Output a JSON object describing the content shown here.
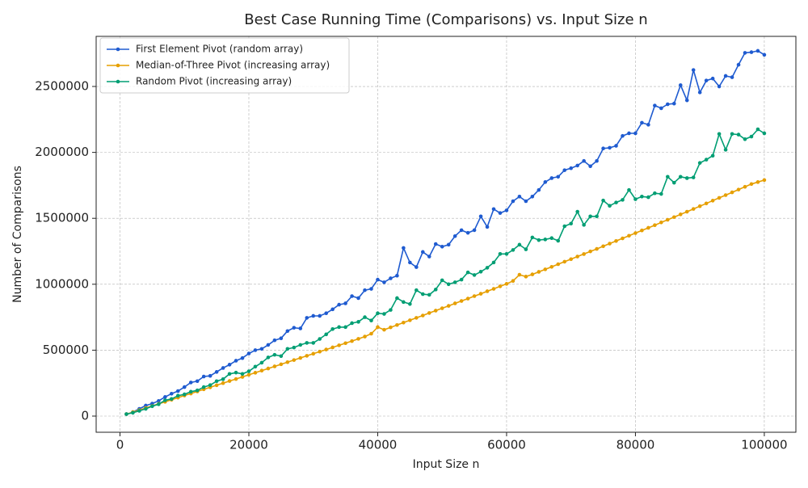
{
  "chart_data": {
    "type": "line",
    "title": "Best Case Running Time (Comparisons) vs. Input Size n",
    "x_label": "Input Size n",
    "y_label": "Number of Comparisons",
    "x": [
      1000,
      2000,
      3000,
      4000,
      5000,
      6000,
      7000,
      8000,
      9000,
      10000,
      11000,
      12000,
      13000,
      14000,
      15000,
      16000,
      17000,
      18000,
      19000,
      20000,
      21000,
      22000,
      23000,
      24000,
      25000,
      26000,
      27000,
      28000,
      29000,
      30000,
      31000,
      32000,
      33000,
      34000,
      35000,
      36000,
      37000,
      38000,
      39000,
      40000,
      41000,
      42000,
      43000,
      44000,
      45000,
      46000,
      47000,
      48000,
      49000,
      50000,
      51000,
      52000,
      53000,
      54000,
      55000,
      56000,
      57000,
      58000,
      59000,
      60000,
      61000,
      62000,
      63000,
      64000,
      65000,
      66000,
      67000,
      68000,
      69000,
      70000,
      71000,
      72000,
      73000,
      74000,
      75000,
      76000,
      77000,
      78000,
      79000,
      80000,
      81000,
      82000,
      83000,
      84000,
      85000,
      86000,
      87000,
      88000,
      89000,
      90000,
      91000,
      92000,
      93000,
      94000,
      95000,
      96000,
      97000,
      98000,
      99000,
      100000
    ],
    "series": [
      {
        "name": "First Element Pivot (random array)",
        "color": "#1f5bd0",
        "values": [
          15000,
          30000,
          55000,
          80000,
          95000,
          115000,
          145000,
          170000,
          190000,
          220000,
          255000,
          265000,
          300000,
          305000,
          335000,
          365000,
          390000,
          420000,
          440000,
          475000,
          500000,
          510000,
          540000,
          575000,
          590000,
          645000,
          670000,
          665000,
          745000,
          760000,
          760000,
          780000,
          810000,
          845000,
          855000,
          910000,
          895000,
          955000,
          965000,
          1035000,
          1015000,
          1045000,
          1065000,
          1275000,
          1165000,
          1130000,
          1245000,
          1210000,
          1305000,
          1285000,
          1300000,
          1365000,
          1410000,
          1390000,
          1410000,
          1515000,
          1435000,
          1570000,
          1540000,
          1560000,
          1630000,
          1665000,
          1630000,
          1665000,
          1715000,
          1775000,
          1805000,
          1815000,
          1865000,
          1880000,
          1900000,
          1935000,
          1895000,
          1935000,
          2030000,
          2035000,
          2050000,
          2125000,
          2145000,
          2145000,
          2225000,
          2210000,
          2355000,
          2335000,
          2365000,
          2370000,
          2510000,
          2395000,
          2625000,
          2455000,
          2545000,
          2560000,
          2500000,
          2580000,
          2570000,
          2665000,
          2755000,
          2760000,
          2770000,
          2740000
        ]
      },
      {
        "name": "Median-of-Three Pivot (increasing array)",
        "color": "#e69f00",
        "values": [
          15000,
          30000,
          45000,
          62000,
          77000,
          93000,
          108000,
          124000,
          140000,
          156000,
          171000,
          187000,
          203000,
          218000,
          234000,
          250000,
          266000,
          281000,
          297000,
          313000,
          329000,
          345000,
          361000,
          377000,
          393000,
          409000,
          425000,
          441000,
          457000,
          473000,
          489000,
          505000,
          521000,
          537000,
          553000,
          569000,
          586000,
          603000,
          625000,
          675000,
          655000,
          673000,
          691000,
          709000,
          727000,
          745000,
          763000,
          782000,
          800000,
          818000,
          836000,
          855000,
          873000,
          891000,
          910000,
          928000,
          947000,
          965000,
          984000,
          1003000,
          1025000,
          1072000,
          1058000,
          1075000,
          1094000,
          1113000,
          1132000,
          1152000,
          1171000,
          1190000,
          1210000,
          1229000,
          1249000,
          1268000,
          1288000,
          1308000,
          1328000,
          1348000,
          1368000,
          1388000,
          1408000,
          1428000,
          1448000,
          1469000,
          1489000,
          1509000,
          1530000,
          1550000,
          1571000,
          1592000,
          1613000,
          1634000,
          1655000,
          1676000,
          1697000,
          1718000,
          1739000,
          1760000,
          1775000,
          1790000
        ]
      },
      {
        "name": "Random Pivot (increasing array)",
        "color": "#009e73",
        "values": [
          15000,
          25000,
          40000,
          55000,
          75000,
          90000,
          120000,
          130000,
          155000,
          165000,
          185000,
          195000,
          220000,
          235000,
          265000,
          280000,
          320000,
          330000,
          320000,
          340000,
          375000,
          405000,
          445000,
          465000,
          455000,
          510000,
          520000,
          540000,
          555000,
          555000,
          585000,
          620000,
          660000,
          675000,
          675000,
          705000,
          715000,
          750000,
          725000,
          780000,
          775000,
          805000,
          895000,
          865000,
          850000,
          955000,
          925000,
          920000,
          960000,
          1030000,
          1000000,
          1015000,
          1035000,
          1090000,
          1070000,
          1095000,
          1125000,
          1165000,
          1230000,
          1230000,
          1260000,
          1300000,
          1265000,
          1355000,
          1335000,
          1340000,
          1350000,
          1330000,
          1440000,
          1460000,
          1550000,
          1450000,
          1515000,
          1515000,
          1635000,
          1595000,
          1620000,
          1640000,
          1715000,
          1645000,
          1665000,
          1660000,
          1690000,
          1685000,
          1815000,
          1770000,
          1815000,
          1805000,
          1810000,
          1920000,
          1945000,
          1975000,
          2140000,
          2020000,
          2140000,
          2135000,
          2100000,
          2120000,
          2175000,
          2145000
        ]
      }
    ],
    "xlim": [
      -3700,
      104900
    ],
    "ylim": [
      -122500,
      2880000
    ],
    "xticks": [
      0,
      20000,
      40000,
      60000,
      80000,
      100000
    ],
    "yticks": [
      0,
      500000,
      1000000,
      1500000,
      2000000,
      2500000
    ],
    "grid": true,
    "legend": "upper left"
  }
}
